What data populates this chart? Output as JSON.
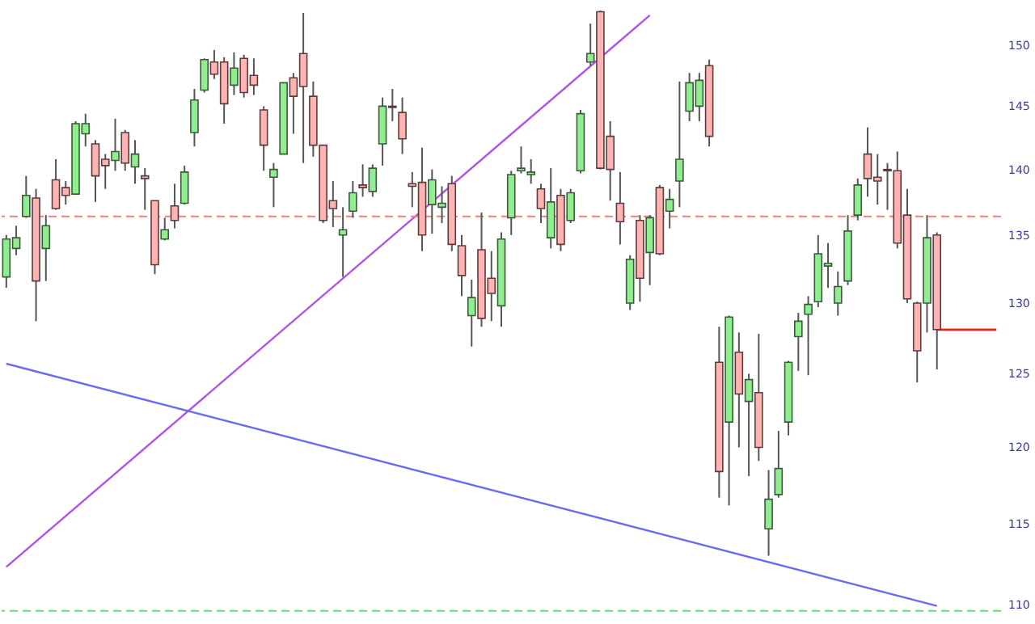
{
  "chart_data": {
    "type": "candlestick",
    "log": true,
    "tick_labels": "y",
    "ylim": [
      108.8,
      153.8
    ],
    "yticks": [
      110,
      115,
      120,
      125,
      130,
      135,
      140,
      145,
      150
    ],
    "categories": [
      null,
      null,
      null,
      null,
      null,
      null,
      null,
      null,
      null,
      null,
      null,
      null,
      null,
      null,
      null,
      null,
      null,
      null,
      null,
      null,
      null,
      null,
      null,
      null,
      null,
      null,
      null,
      null,
      null,
      null,
      null,
      null,
      null,
      null,
      null,
      null,
      null,
      null,
      null,
      null,
      null,
      null,
      null,
      null,
      null,
      null,
      null,
      null,
      null,
      null,
      null,
      null,
      null,
      null,
      null,
      null,
      null,
      null,
      null,
      null,
      null,
      null,
      null,
      null,
      null,
      null,
      null,
      null,
      null,
      null,
      null,
      null,
      null,
      null,
      null,
      null,
      null,
      null,
      null,
      null,
      null,
      null,
      null,
      null,
      null,
      null,
      null,
      null,
      null,
      null,
      null,
      null,
      null,
      null,
      null,
      null,
      null,
      null,
      null,
      null,
      null
    ],
    "ohlc": [
      [
        131.9,
        135.0,
        131.1,
        134.7
      ],
      [
        134.0,
        135.7,
        133.5,
        134.8
      ],
      [
        136.4,
        139.5,
        136.3,
        138.0
      ],
      [
        137.8,
        138.5,
        128.7,
        131.6
      ],
      [
        134.0,
        136.5,
        131.6,
        135.7
      ],
      [
        139.2,
        140.8,
        136.9,
        137.0
      ],
      [
        138.6,
        139.1,
        137.3,
        138.0
      ],
      [
        138.1,
        143.8,
        138.1,
        143.6
      ],
      [
        142.8,
        144.4,
        141.8,
        143.6
      ],
      [
        142.0,
        142.3,
        137.5,
        139.5
      ],
      [
        140.8,
        141.2,
        138.5,
        140.3
      ],
      [
        140.7,
        144.0,
        139.9,
        141.4
      ],
      [
        142.9,
        143.1,
        139.9,
        140.5
      ],
      [
        140.2,
        142.3,
        138.9,
        141.2
      ],
      [
        139.5,
        140.1,
        136.9,
        139.3
      ],
      [
        137.6,
        137.6,
        132.1,
        132.8
      ],
      [
        134.7,
        136.3,
        134.6,
        135.4
      ],
      [
        137.2,
        138.9,
        135.5,
        136.1
      ],
      [
        137.4,
        140.3,
        137.3,
        139.8
      ],
      [
        142.9,
        146.4,
        141.8,
        145.5
      ],
      [
        146.3,
        148.9,
        146.1,
        148.8
      ],
      [
        148.6,
        149.6,
        147.2,
        147.6
      ],
      [
        148.6,
        149.0,
        143.6,
        145.2
      ],
      [
        146.7,
        149.4,
        145.9,
        148.1
      ],
      [
        148.9,
        149.2,
        145.7,
        146.1
      ],
      [
        147.5,
        148.9,
        145.9,
        146.7
      ],
      [
        144.7,
        145.0,
        139.9,
        141.9
      ],
      [
        139.4,
        140.5,
        137.1,
        140.0
      ],
      [
        141.2,
        146.9,
        141.2,
        146.9
      ],
      [
        147.3,
        147.7,
        142.8,
        145.8
      ],
      [
        149.3,
        152.7,
        140.5,
        146.6
      ],
      [
        145.8,
        147.0,
        141.0,
        141.9
      ],
      [
        141.9,
        141.9,
        135.9,
        136.1
      ],
      [
        137.6,
        139.1,
        135.6,
        137.0
      ],
      [
        135.0,
        137.1,
        131.9,
        135.4
      ],
      [
        136.8,
        139.1,
        136.3,
        138.2
      ],
      [
        138.8,
        140.4,
        137.9,
        138.6
      ],
      [
        138.3,
        140.4,
        137.9,
        140.1
      ],
      [
        142.0,
        145.7,
        140.3,
        145.0
      ],
      [
        145.0,
        146.4,
        143.8,
        144.9
      ],
      [
        144.5,
        145.7,
        141.2,
        142.4
      ],
      [
        138.9,
        139.8,
        137.1,
        138.7
      ],
      [
        139.0,
        141.7,
        133.8,
        135.0
      ],
      [
        137.3,
        140.0,
        135.1,
        139.2
      ],
      [
        137.1,
        138.7,
        135.9,
        137.4
      ],
      [
        138.9,
        139.5,
        133.8,
        134.3
      ],
      [
        134.2,
        135.0,
        130.5,
        132.0
      ],
      [
        129.1,
        131.7,
        126.9,
        130.4
      ],
      [
        133.9,
        136.7,
        128.3,
        128.9
      ],
      [
        131.8,
        133.8,
        128.7,
        130.7
      ],
      [
        129.8,
        135.2,
        128.3,
        134.7
      ],
      [
        136.3,
        139.9,
        135.0,
        139.6
      ],
      [
        139.9,
        141.8,
        139.7,
        140.1
      ],
      [
        139.6,
        140.8,
        138.9,
        139.8
      ],
      [
        138.5,
        138.9,
        135.9,
        137.0
      ],
      [
        134.8,
        140.1,
        134.0,
        137.5
      ],
      [
        138.0,
        138.5,
        133.8,
        134.3
      ],
      [
        136.1,
        138.5,
        135.9,
        138.2
      ],
      [
        139.9,
        144.7,
        139.7,
        144.4
      ],
      [
        148.6,
        151.8,
        148.3,
        149.3
      ],
      [
        152.8,
        152.9,
        140.0,
        140.1
      ],
      [
        142.6,
        143.8,
        137.6,
        140.0
      ],
      [
        137.4,
        139.8,
        134.3,
        136.0
      ],
      [
        130.0,
        133.5,
        129.5,
        133.2
      ],
      [
        136.1,
        136.5,
        130.1,
        131.8
      ],
      [
        133.7,
        136.5,
        131.3,
        136.3
      ],
      [
        138.6,
        138.8,
        133.5,
        133.6
      ],
      [
        136.8,
        138.5,
        135.5,
        137.7
      ],
      [
        139.1,
        147.0,
        137.1,
        140.8
      ],
      [
        144.6,
        147.7,
        143.8,
        146.9
      ],
      [
        145.0,
        147.7,
        143.8,
        147.1
      ],
      [
        148.3,
        148.8,
        141.8,
        142.6
      ],
      [
        125.8,
        128.3,
        116.7,
        118.4
      ],
      [
        121.7,
        129.1,
        116.2,
        129.0
      ],
      [
        126.5,
        127.9,
        120.0,
        123.6
      ],
      [
        123.1,
        125.0,
        118.1,
        124.6
      ],
      [
        123.7,
        127.8,
        119.1,
        120.0
      ],
      [
        114.7,
        118.5,
        113.0,
        116.6
      ],
      [
        116.9,
        121.1,
        116.7,
        118.6
      ],
      [
        121.7,
        125.9,
        120.8,
        125.8
      ],
      [
        127.6,
        129.3,
        125.2,
        128.7
      ],
      [
        129.2,
        130.5,
        124.9,
        129.9
      ],
      [
        130.1,
        135.0,
        129.7,
        133.6
      ],
      [
        132.7,
        134.4,
        131.1,
        132.9
      ],
      [
        130.0,
        132.3,
        129.1,
        131.2
      ],
      [
        131.6,
        136.5,
        131.3,
        135.3
      ],
      [
        136.5,
        139.3,
        136.1,
        138.8
      ],
      [
        141.2,
        143.3,
        137.9,
        139.3
      ],
      [
        139.4,
        141.2,
        137.3,
        139.1
      ],
      [
        140.0,
        140.5,
        136.9,
        139.9
      ],
      [
        139.9,
        141.4,
        134.0,
        134.4
      ],
      [
        136.5,
        138.5,
        130.0,
        130.3
      ],
      [
        130.0,
        130.1,
        124.4,
        126.6
      ],
      [
        130.0,
        136.5,
        127.9,
        134.8
      ],
      [
        135.0,
        135.2,
        125.3,
        128.1
      ],
      null,
      null,
      null,
      null,
      null,
      null
    ],
    "series": [
      {
        "type": "line",
        "color": "#b44fe8",
        "values": [
          112.3,
          null,
          null,
          null,
          null,
          null,
          null,
          null,
          null,
          null,
          null,
          null,
          null,
          null,
          null,
          null,
          null,
          null,
          null,
          null,
          null,
          null,
          null,
          null,
          null,
          null,
          null,
          null,
          null,
          null,
          null,
          null,
          null,
          null,
          null,
          null,
          null,
          null,
          null,
          null,
          null,
          null,
          null,
          null,
          null,
          null,
          null,
          null,
          null,
          null,
          null,
          null,
          null,
          null,
          null,
          null,
          null,
          null,
          null,
          null,
          null,
          null,
          null,
          null,
          null,
          152.5,
          null,
          null,
          null,
          null,
          null,
          null,
          null,
          null,
          null,
          null,
          null,
          null,
          null,
          null,
          null,
          null,
          null,
          null,
          null,
          null,
          null,
          null,
          null,
          null,
          null,
          null,
          null,
          null,
          null,
          null,
          null,
          null,
          null,
          null,
          null
        ]
      },
      {
        "type": "line",
        "color": "#6b6bf0",
        "values": [
          125.7,
          null,
          null,
          null,
          null,
          null,
          null,
          null,
          null,
          null,
          null,
          null,
          null,
          null,
          null,
          null,
          null,
          null,
          null,
          null,
          null,
          null,
          null,
          null,
          null,
          null,
          null,
          null,
          null,
          null,
          null,
          null,
          null,
          null,
          null,
          null,
          null,
          null,
          null,
          null,
          null,
          null,
          null,
          null,
          null,
          null,
          null,
          null,
          null,
          null,
          null,
          null,
          null,
          null,
          null,
          null,
          null,
          null,
          null,
          null,
          null,
          null,
          null,
          null,
          null,
          null,
          null,
          null,
          null,
          null,
          null,
          null,
          null,
          null,
          null,
          null,
          null,
          null,
          null,
          null,
          null,
          null,
          null,
          null,
          null,
          null,
          null,
          null,
          null,
          null,
          null,
          null,
          null,
          null,
          109.9,
          null,
          null,
          null,
          null,
          null,
          null
        ]
      },
      {
        "type": "line",
        "color": "#ff1a1a",
        "values": [
          null,
          null,
          null,
          null,
          null,
          null,
          null,
          null,
          null,
          null,
          null,
          null,
          null,
          null,
          null,
          null,
          null,
          null,
          null,
          null,
          null,
          null,
          null,
          null,
          null,
          null,
          null,
          null,
          null,
          null,
          null,
          null,
          null,
          null,
          null,
          null,
          null,
          null,
          null,
          null,
          null,
          null,
          null,
          null,
          null,
          null,
          null,
          null,
          null,
          null,
          null,
          null,
          null,
          null,
          null,
          null,
          null,
          null,
          null,
          null,
          null,
          null,
          null,
          null,
          null,
          null,
          null,
          null,
          null,
          null,
          null,
          null,
          null,
          null,
          null,
          null,
          null,
          null,
          null,
          null,
          null,
          null,
          null,
          null,
          null,
          null,
          null,
          null,
          null,
          null,
          null,
          null,
          null,
          null,
          128.1,
          128.1,
          128.1,
          128.1,
          128.1,
          128.1,
          128.1
        ]
      }
    ],
    "ref_lines": [
      {
        "axis": "y",
        "value": 136.4,
        "color": "#f08080",
        "line_style": "dashed"
      },
      {
        "axis": "y",
        "value": 109.6,
        "color": "#66dd66",
        "line_style": "dashed"
      }
    ]
  }
}
